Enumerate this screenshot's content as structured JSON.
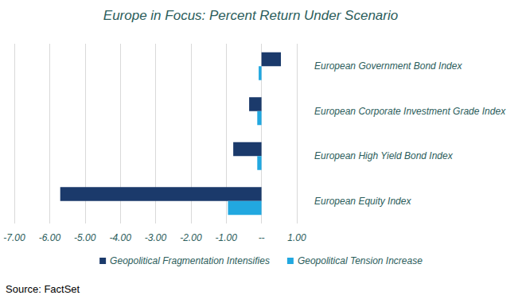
{
  "chart_data": {
    "type": "bar",
    "orientation": "horizontal",
    "title": "Europe in Focus: Percent Return Under Scenario",
    "source": "Source: FactSet",
    "categories": [
      "European Government Bond Index",
      "European Corporate Investment Grade Index",
      "European High Yield Bond Index",
      "European Equity Index"
    ],
    "series": [
      {
        "name": "Geopolitical Fragmentation Intensifies",
        "color": "#1b3a6b",
        "values": [
          0.55,
          -0.35,
          -0.8,
          -5.7
        ]
      },
      {
        "name": "Geopolitical Tension Increase",
        "color": "#22a8e0",
        "values": [
          -0.08,
          -0.12,
          -0.12,
          -0.95
        ]
      }
    ],
    "xlim": [
      -7,
      1
    ],
    "xticks": [
      {
        "value": -7,
        "label": "-7.00"
      },
      {
        "value": -6,
        "label": "-6.00"
      },
      {
        "value": -5,
        "label": "-5.00"
      },
      {
        "value": -4,
        "label": "-4.00"
      },
      {
        "value": -3,
        "label": "-3.00"
      },
      {
        "value": -2,
        "label": "-2.00"
      },
      {
        "value": -1,
        "label": "-1.00"
      },
      {
        "value": 0,
        "label": "--"
      },
      {
        "value": 1,
        "label": "1.00"
      }
    ],
    "grid": true,
    "legend": "bottom"
  }
}
